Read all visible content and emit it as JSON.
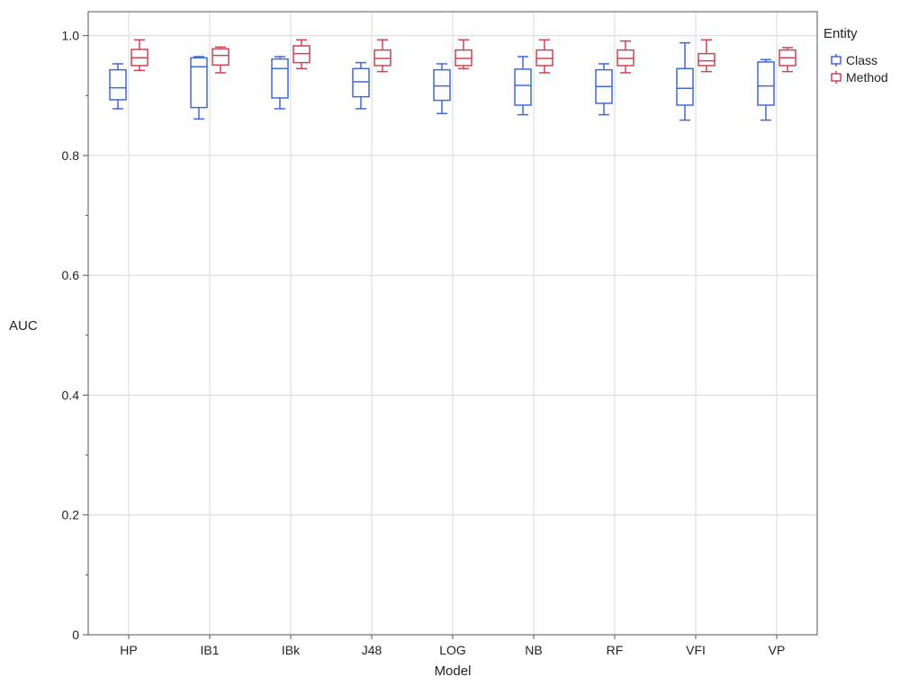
{
  "chart_data": {
    "type": "boxplot",
    "xlabel": "Model",
    "ylabel": "AUC",
    "ylim": [
      0,
      1.04
    ],
    "yticks": [
      0,
      0.2,
      0.4,
      0.6,
      0.8,
      1.0
    ],
    "ytick_labels": [
      "0",
      "0.2",
      "0.4",
      "0.6",
      "0.8",
      "1.0"
    ],
    "categories": [
      "HP",
      "IB1",
      "IBk",
      "J48",
      "LOG",
      "NB",
      "RF",
      "VFI",
      "VP"
    ],
    "grid": true,
    "legend_placement": "right",
    "legend_title": "Entity",
    "series": [
      {
        "name": "Class",
        "color": "#4169d6",
        "stats": [
          {
            "min": 0.878,
            "q1": 0.893,
            "median": 0.913,
            "q3": 0.943,
            "max": 0.953
          },
          {
            "min": 0.861,
            "q1": 0.88,
            "median": 0.948,
            "q3": 0.963,
            "max": 0.965
          },
          {
            "min": 0.878,
            "q1": 0.896,
            "median": 0.945,
            "q3": 0.961,
            "max": 0.965
          },
          {
            "min": 0.878,
            "q1": 0.898,
            "median": 0.923,
            "q3": 0.945,
            "max": 0.955
          },
          {
            "min": 0.87,
            "q1": 0.892,
            "median": 0.916,
            "q3": 0.943,
            "max": 0.953
          },
          {
            "min": 0.868,
            "q1": 0.884,
            "median": 0.917,
            "q3": 0.944,
            "max": 0.965
          },
          {
            "min": 0.868,
            "q1": 0.887,
            "median": 0.915,
            "q3": 0.943,
            "max": 0.953
          },
          {
            "min": 0.859,
            "q1": 0.884,
            "median": 0.912,
            "q3": 0.945,
            "max": 0.988
          },
          {
            "min": 0.859,
            "q1": 0.884,
            "median": 0.916,
            "q3": 0.956,
            "max": 0.96
          }
        ]
      },
      {
        "name": "Method",
        "color": "#cc4455",
        "stats": [
          {
            "min": 0.942,
            "q1": 0.95,
            "median": 0.963,
            "q3": 0.977,
            "max": 0.993
          },
          {
            "min": 0.938,
            "q1": 0.951,
            "median": 0.967,
            "q3": 0.978,
            "max": 0.981
          },
          {
            "min": 0.945,
            "q1": 0.955,
            "median": 0.97,
            "q3": 0.983,
            "max": 0.993
          },
          {
            "min": 0.94,
            "q1": 0.95,
            "median": 0.962,
            "q3": 0.976,
            "max": 0.993
          },
          {
            "min": 0.945,
            "q1": 0.95,
            "median": 0.962,
            "q3": 0.976,
            "max": 0.993
          },
          {
            "min": 0.938,
            "q1": 0.95,
            "median": 0.962,
            "q3": 0.976,
            "max": 0.993
          },
          {
            "min": 0.938,
            "q1": 0.95,
            "median": 0.962,
            "q3": 0.976,
            "max": 0.991
          },
          {
            "min": 0.94,
            "q1": 0.95,
            "median": 0.958,
            "q3": 0.97,
            "max": 0.993
          },
          {
            "min": 0.94,
            "q1": 0.95,
            "median": 0.963,
            "q3": 0.976,
            "max": 0.98
          }
        ]
      }
    ]
  }
}
